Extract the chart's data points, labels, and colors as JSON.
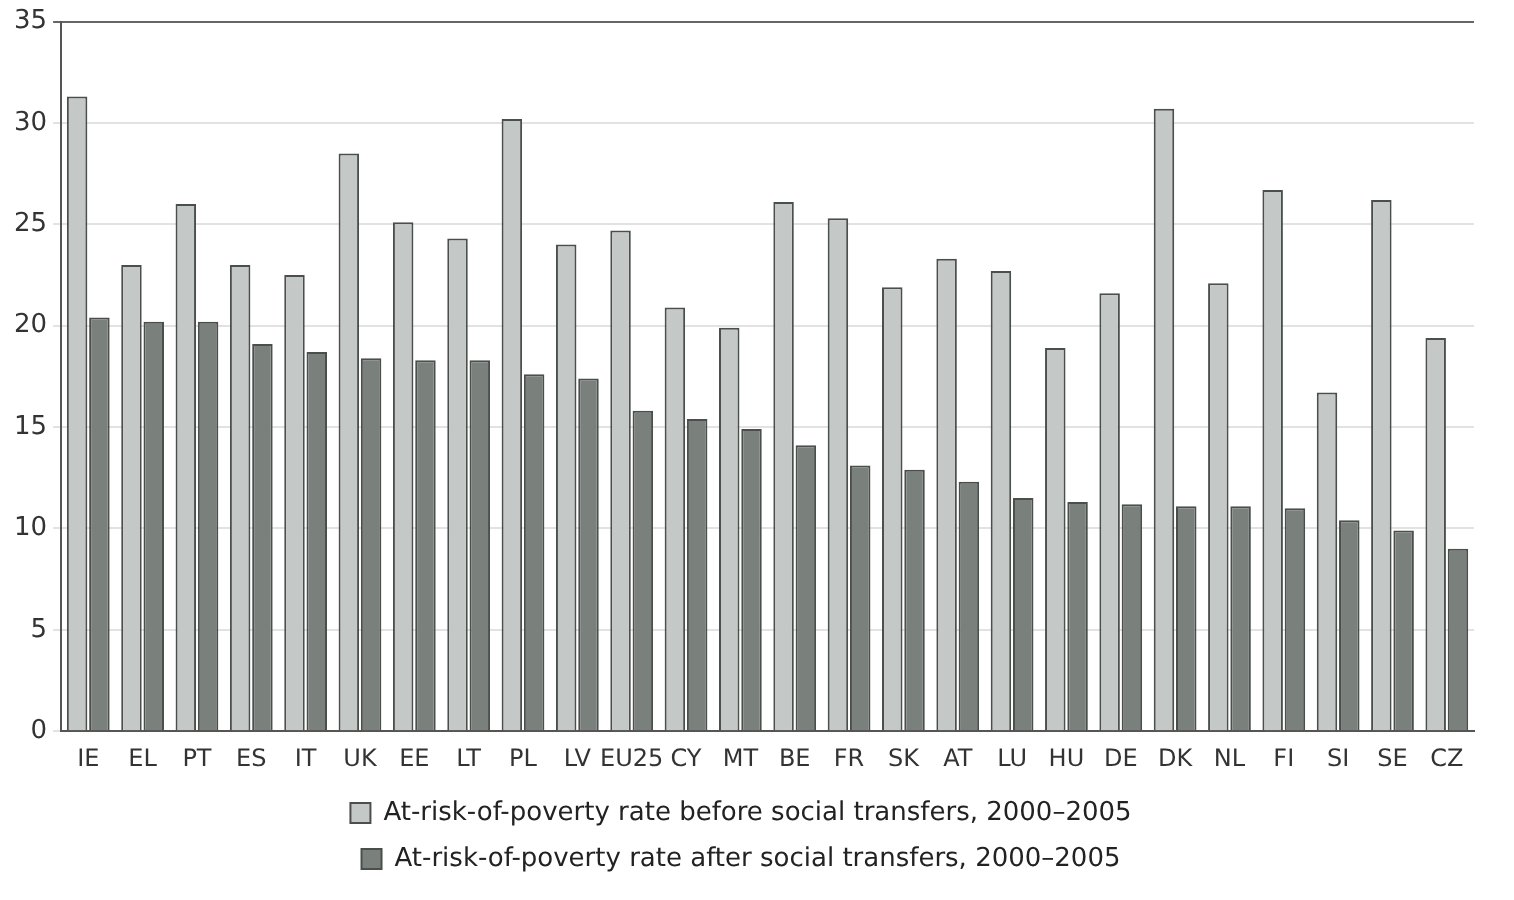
{
  "chart_data": {
    "type": "bar",
    "categories": [
      "IE",
      "EL",
      "PT",
      "ES",
      "IT",
      "UK",
      "EE",
      "LT",
      "PL",
      "LV",
      "EU25",
      "CY",
      "MT",
      "BE",
      "FR",
      "SK",
      "AT",
      "LU",
      "HU",
      "DE",
      "DK",
      "NL",
      "FI",
      "SI",
      "SE",
      "CZ"
    ],
    "series": [
      {
        "name": "At-risk-of-poverty rate before social transfers, 2000–2005",
        "color": "#c4c8c6",
        "values": [
          31.3,
          23,
          26,
          23,
          22.5,
          28.5,
          25.1,
          24.3,
          30.2,
          24,
          24.7,
          20.9,
          19.9,
          26.1,
          25.3,
          21.9,
          23.3,
          22.7,
          18.9,
          21.6,
          30.7,
          22.1,
          26.7,
          16.7,
          26.2,
          19.4
        ]
      },
      {
        "name": "At-risk-of-poverty rate after social transfers, 2000–2005",
        "color": "#7a807c",
        "values": [
          20.4,
          20.2,
          20.2,
          19.1,
          18.7,
          18.4,
          18.3,
          18.3,
          17.6,
          17.4,
          15.8,
          15.4,
          14.9,
          14.1,
          13.1,
          12.9,
          12.3,
          11.5,
          11.3,
          11.2,
          11.1,
          11.1,
          11.0,
          10.4,
          9.9,
          9.0
        ]
      }
    ],
    "ylim": [
      0,
      35
    ],
    "yticks": [
      0,
      5,
      10,
      15,
      20,
      25,
      30,
      35
    ],
    "grid": "y",
    "legend": "bottom"
  }
}
